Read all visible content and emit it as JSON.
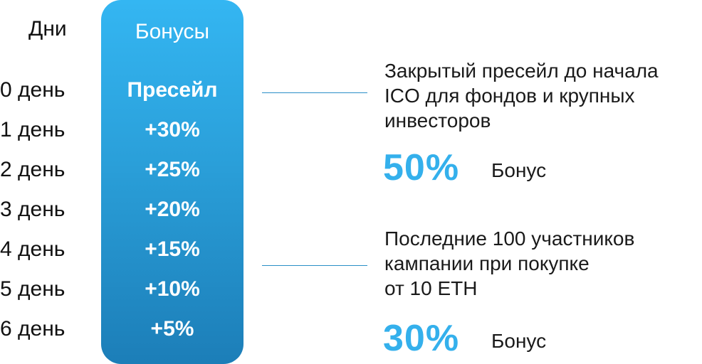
{
  "days": {
    "header": "Дни",
    "items": [
      "0 день",
      "1 день",
      "2 день",
      "3 день",
      "4 день",
      "5 день",
      "6 день"
    ]
  },
  "bonuses": {
    "title": "Бонусы",
    "items": [
      "Пресейл",
      "+30%",
      "+25%",
      "+20%",
      "+15%",
      "+10%",
      "+5%"
    ]
  },
  "offers": [
    {
      "lines": [
        "Закрытый пресейл до начала",
        "ICO для фондов и крупных",
        "инвесторов"
      ],
      "percent": "50%",
      "label": "Бонус"
    },
    {
      "lines": [
        "Последние 100 участников",
        "кампании при покупке",
        "от 10 ETH"
      ],
      "percent": "30%",
      "label": "Бонус"
    }
  ],
  "colors": {
    "accent": "#34b0ec",
    "column_top": "#34b6f2",
    "column_bottom": "#1c7eb8",
    "connector": "#2a8fc7"
  }
}
